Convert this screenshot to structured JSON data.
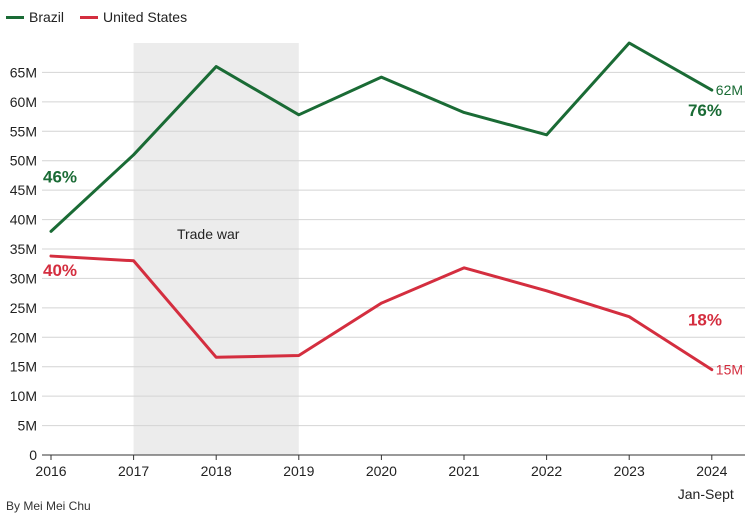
{
  "legend": {
    "items": [
      {
        "label": "Brazil",
        "color": "#1a6b35"
      },
      {
        "label": "United States",
        "color": "#d42e3f"
      }
    ]
  },
  "credit": "By Mei Mei Chu",
  "chart_data": {
    "type": "line",
    "x": [
      "2016",
      "2017",
      "2018",
      "2019",
      "2020",
      "2021",
      "2022",
      "2023",
      "2024"
    ],
    "x_sublabel": {
      "2024": "Jan-Sept"
    },
    "ylim": [
      0,
      70
    ],
    "yticks": [
      {
        "value": 0,
        "label": "0"
      },
      {
        "value": 5,
        "label": "5M"
      },
      {
        "value": 10,
        "label": "10M"
      },
      {
        "value": 15,
        "label": "15M"
      },
      {
        "value": 20,
        "label": "20M"
      },
      {
        "value": 25,
        "label": "25M"
      },
      {
        "value": 30,
        "label": "30M"
      },
      {
        "value": 35,
        "label": "35M"
      },
      {
        "value": 40,
        "label": "40M"
      },
      {
        "value": 45,
        "label": "45M"
      },
      {
        "value": 50,
        "label": "50M"
      },
      {
        "value": 55,
        "label": "55M"
      },
      {
        "value": 60,
        "label": "60M"
      },
      {
        "value": 65,
        "label": "65M"
      }
    ],
    "grid": true,
    "shaded_region": {
      "from": "2017",
      "to": "2019",
      "label": "Trade war",
      "color": "#ececec"
    },
    "series": [
      {
        "name": "Brazil",
        "color": "#1a6b35",
        "values": [
          38,
          51,
          66,
          57.8,
          64.2,
          58.2,
          54.4,
          70,
          62
        ],
        "start_annotation": "46%",
        "end_annotation": "76%",
        "end_value_label": "62M"
      },
      {
        "name": "United States",
        "color": "#d42e3f",
        "values": [
          33.8,
          33,
          16.6,
          16.9,
          25.8,
          31.8,
          27.9,
          23.5,
          14.5
        ],
        "start_annotation": "40%",
        "end_annotation": "18%",
        "end_value_label": "15M"
      }
    ]
  }
}
